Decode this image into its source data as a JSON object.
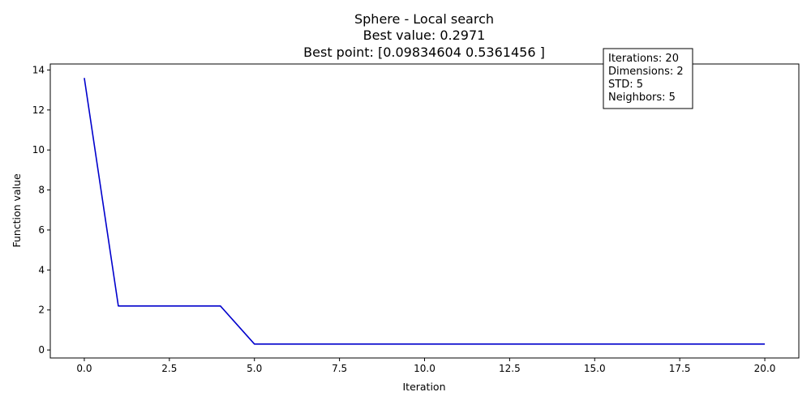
{
  "chart_data": {
    "type": "line",
    "title_lines": [
      "Sphere - Local search",
      "Best value: 0.2971",
      "Best point: [0.09834604 0.5361456 ]"
    ],
    "xlabel": "Iteration",
    "ylabel": "Function value",
    "xlim": [
      -1,
      21
    ],
    "ylim": [
      -0.4,
      14.3
    ],
    "x_ticks": [
      0,
      2.5,
      5,
      7.5,
      10,
      12.5,
      15,
      17.5,
      20
    ],
    "x_tick_labels": [
      "0.0",
      "2.5",
      "5.0",
      "7.5",
      "10.0",
      "12.5",
      "15.0",
      "17.5",
      "20.0"
    ],
    "y_ticks": [
      0,
      2,
      4,
      6,
      8,
      10,
      12,
      14
    ],
    "y_tick_labels": [
      "0",
      "2",
      "4",
      "6",
      "8",
      "10",
      "12",
      "14"
    ],
    "grid": false,
    "legend": "none",
    "series": [
      {
        "color": "#0000cc",
        "x": [
          0,
          1,
          2,
          3,
          4,
          5,
          6,
          7,
          8,
          9,
          10,
          11,
          12,
          13,
          14,
          15,
          16,
          17,
          18,
          19,
          20
        ],
        "y": [
          13.6,
          2.2,
          2.2,
          2.2,
          2.2,
          0.2971,
          0.2971,
          0.2971,
          0.2971,
          0.2971,
          0.2971,
          0.2971,
          0.2971,
          0.2971,
          0.2971,
          0.2971,
          0.2971,
          0.2971,
          0.2971,
          0.2971,
          0.2971
        ]
      }
    ],
    "annotation_lines": [
      "Iterations: 20",
      "Dimensions: 2",
      "STD: 5",
      "Neighbors: 5"
    ]
  }
}
